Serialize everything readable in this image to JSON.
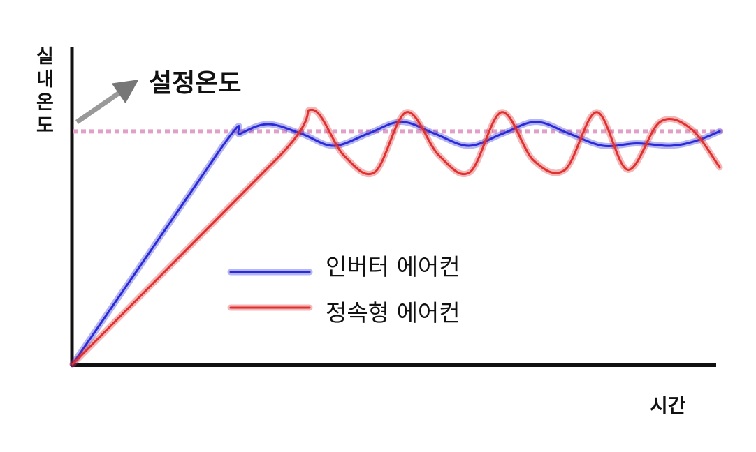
{
  "chart_data": {
    "type": "line",
    "title": "",
    "xlabel": "시간",
    "ylabel": "실내온도",
    "annotation": "설정온도",
    "xlim": [
      0,
      100
    ],
    "ylim": [
      0,
      100
    ],
    "setpoint": 97,
    "grid": false,
    "legend_position": "center",
    "series": [
      {
        "name": "인버터 에어컨",
        "color": "#2a2ad8",
        "x": [
          0,
          23.2,
          25.9,
          30.2,
          35.4,
          40.3,
          45.6,
          50.8,
          56.0,
          61.2,
          66.4,
          71.6,
          76.8,
          82.0,
          87.2,
          92.4,
          96.3,
          100
        ],
        "y": [
          0,
          91,
          96,
          100,
          96,
          91,
          96,
          101,
          96,
          91,
          96,
          101,
          96,
          91,
          92,
          91,
          93,
          97
        ]
      },
      {
        "name": "정속형 에어컨",
        "color": "#e03030",
        "x": [
          0,
          32.1,
          37.0,
          41.9,
          46.7,
          51.6,
          56.6,
          61.4,
          66.3,
          71.2,
          76.1,
          81.0,
          85.8,
          90.8,
          95.6,
          100
        ],
        "y": [
          0,
          87,
          106,
          87,
          80,
          105,
          87,
          80,
          105,
          85,
          81,
          105,
          81,
          101,
          98,
          82
        ]
      }
    ]
  }
}
